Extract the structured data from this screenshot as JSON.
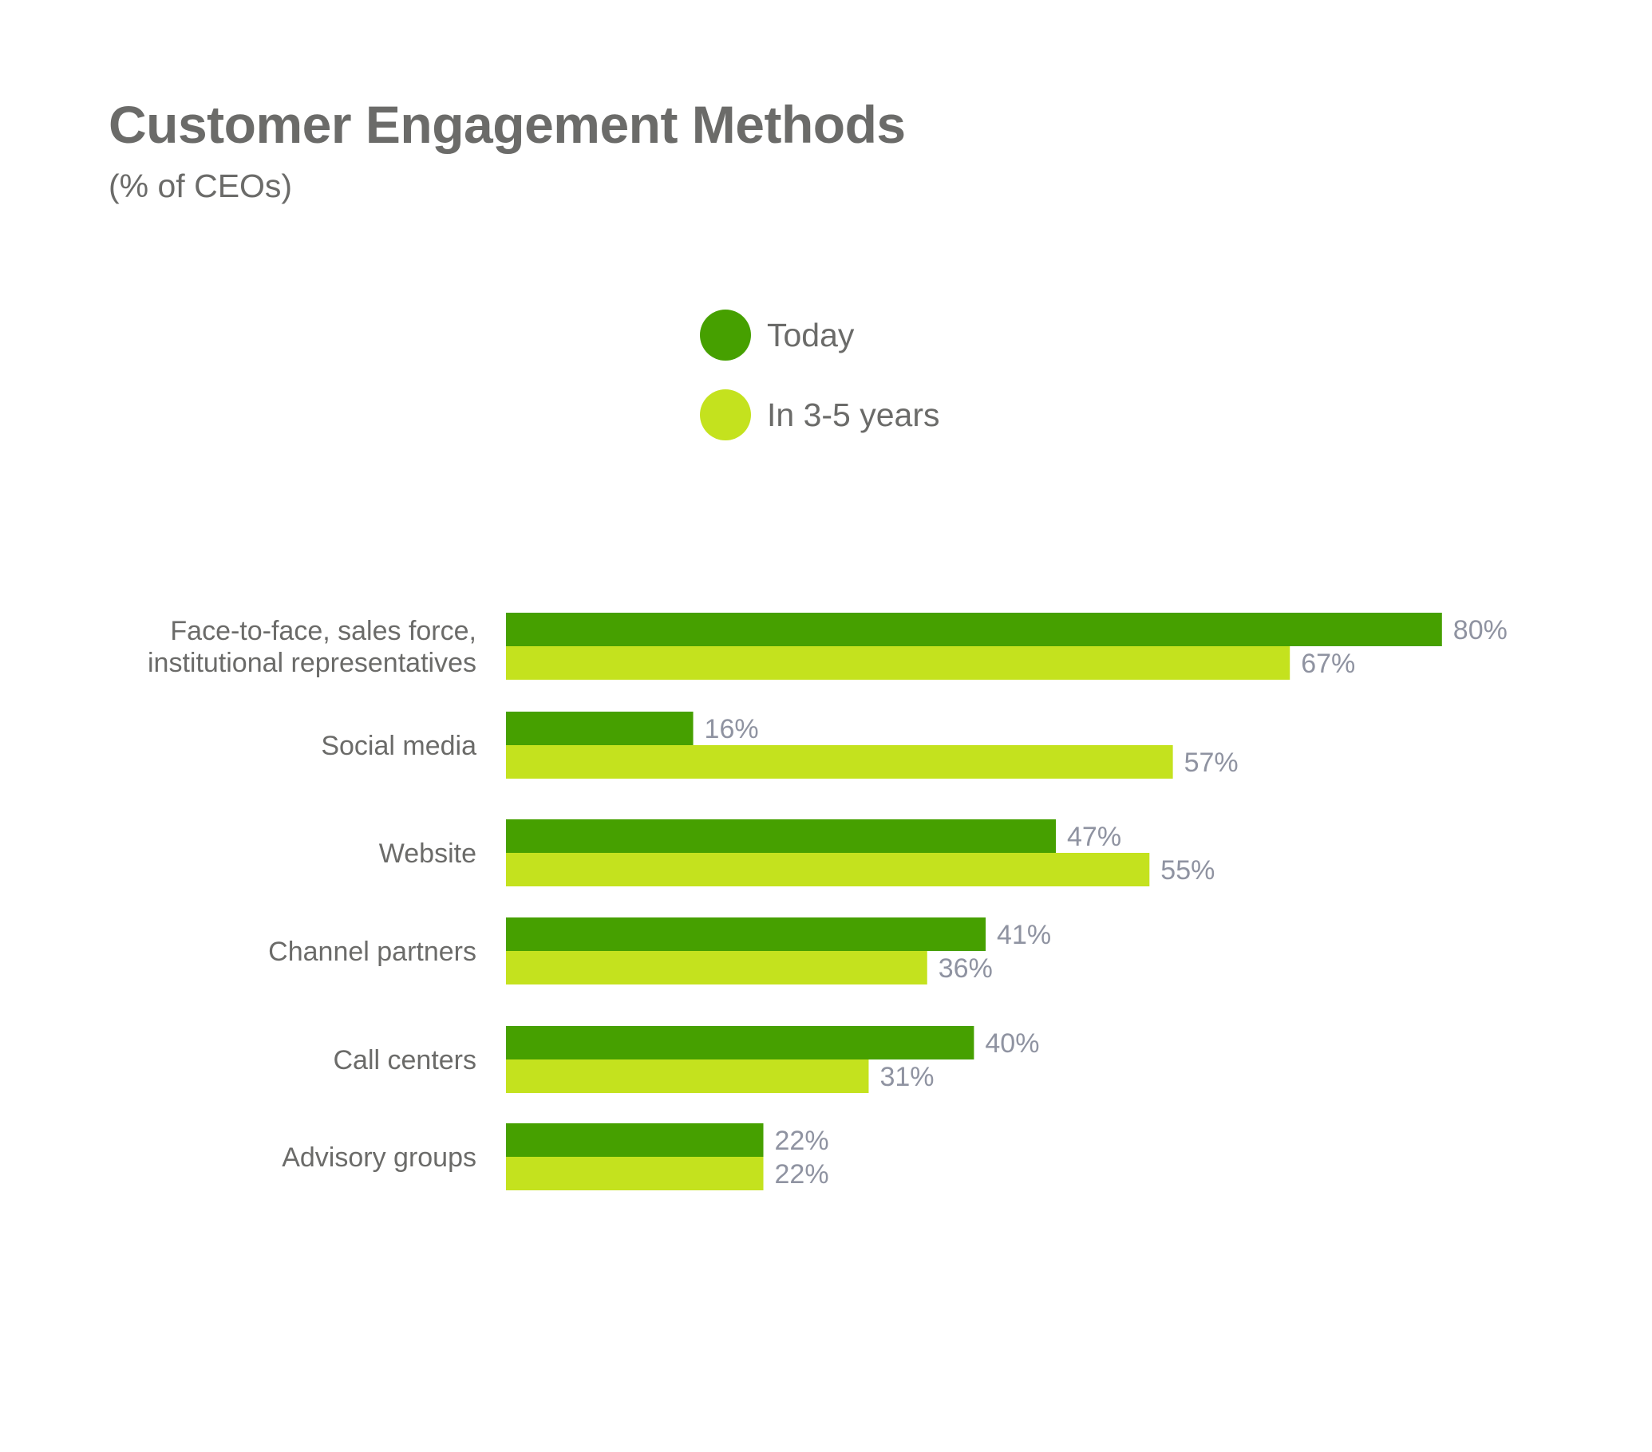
{
  "chart_data": {
    "type": "bar",
    "orientation": "horizontal",
    "title": "Customer Engagement Methods",
    "subtitle": "(% of CEOs)",
    "categories": [
      [
        "Face-to-face, sales force,",
        "institutional representatives"
      ],
      [
        "Social media"
      ],
      [
        "Website"
      ],
      [
        "Channel partners"
      ],
      [
        "Call centers"
      ],
      [
        "Advisory groups"
      ]
    ],
    "series": [
      {
        "name": "Today",
        "color": "#46a000",
        "values": [
          80,
          16,
          47,
          41,
          40,
          22
        ]
      },
      {
        "name": "In 3-5 years",
        "color": "#c4e21e",
        "values": [
          67,
          57,
          55,
          36,
          31,
          22
        ]
      }
    ],
    "value_suffix": "%",
    "xlim": [
      0,
      100
    ],
    "legend": {
      "position": "top-center"
    },
    "grid": false,
    "axes_visible": false
  }
}
